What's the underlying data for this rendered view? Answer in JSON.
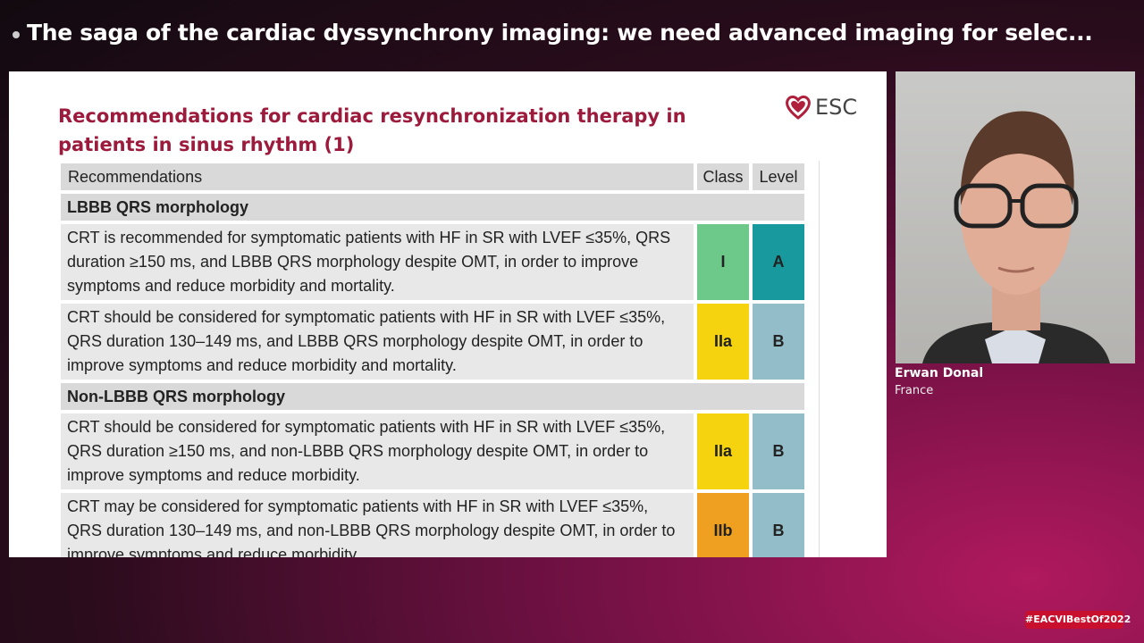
{
  "header": {
    "title": "The saga of the cardiac dyssynchrony imaging: we need advanced imaging for selec..."
  },
  "slide": {
    "title": "Recommendations for cardiac resynchronization therapy in patients in sinus rhythm (1)",
    "logo": "ESC",
    "table": {
      "headers": [
        "Recommendations",
        "Class",
        "Level"
      ],
      "groups": [
        {
          "title": "LBBB QRS morphology",
          "rows": [
            {
              "text": "CRT is recommended for symptomatic patients with HF in SR with LVEF ≤35%, QRS duration ≥150 ms, and LBBB QRS morphology despite OMT, in order to improve symptoms and reduce morbidity and mortality.",
              "class": "I",
              "class_color": "#6cc98a",
              "level": "A",
              "level_color": "#17999e"
            },
            {
              "text": "CRT should be considered for symptomatic patients with HF in SR with LVEF ≤35%, QRS duration 130–149 ms, and LBBB QRS morphology despite OMT, in order to improve symptoms and reduce morbidity and mortality.",
              "class": "IIa",
              "class_color": "#f5d40f",
              "level": "B",
              "level_color": "#93bdc9"
            }
          ]
        },
        {
          "title": "Non-LBBB QRS morphology",
          "rows": [
            {
              "text": "CRT should be considered for symptomatic patients with HF in SR with LVEF ≤35%, QRS duration ≥150 ms, and non-LBBB QRS morphology despite OMT, in order to improve symptoms and reduce morbidity.",
              "class": "IIa",
              "class_color": "#f5d40f",
              "level": "B",
              "level_color": "#93bdc9"
            },
            {
              "text": "CRT may be considered for symptomatic patients with HF in SR with LVEF ≤35%, QRS duration 130–149 ms, and non-LBBB QRS morphology despite OMT, in order to improve symptoms and reduce morbidity.",
              "class": "IIb",
              "class_color": "#f0a020",
              "level": "B",
              "level_color": "#93bdc9"
            }
          ]
        }
      ]
    }
  },
  "speaker": {
    "name": "Erwan Donal",
    "country": "France"
  },
  "hashtag": "#EACVIBestOf2022"
}
